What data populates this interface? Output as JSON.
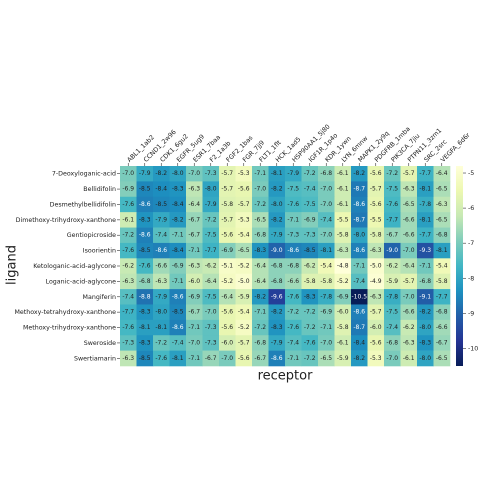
{
  "chart_data": {
    "type": "heatmap",
    "x_label": "receptor",
    "y_label": "ligand",
    "x_categories": [
      "ABL1_1ab2",
      "CCND1_2w96",
      "CDK1_6gu2",
      "EGFR_5ug9",
      "ESR1_7baa",
      "F2_1a3b",
      "FGF2_1bas",
      "FGR_7jj9",
      "FLT1_1flt",
      "HCK_1ad5",
      "HSP90AA1_5j80",
      "IGF1R_1p4o",
      "KDR_1ywn",
      "LYN_6mnw",
      "MAPK1_2y9q",
      "PDGFRB_1mba",
      "PIK3CA_7jiu",
      "PTPN11_3zm1",
      "SRC_2src",
      "VEGFA_6d6r"
    ],
    "y_categories": [
      "7-Deoxyloganic-acid",
      "Bellidifolin",
      "Desmethylbellidifolin",
      "Dimethoxy-trihydroxy-xanthone",
      "Gentiopicroside",
      "Isoorientin",
      "Ketologanic-acid-aglycone",
      "Loganic-acid-aglycone",
      "Mangiferin",
      "Methoxy-tetrahydroxy-xanthone",
      "Methoxy-trihydroxy-xanthone",
      "Sweroside",
      "Swertiamarin"
    ],
    "values": [
      [
        -7.0,
        -7.9,
        -8.2,
        -8.0,
        -7.0,
        -7.3,
        -5.7,
        -5.3,
        -7.1,
        -8.1,
        -7.9,
        -7.2,
        -6.8,
        -6.1,
        -8.2,
        -5.6,
        -7.2,
        -5.7,
        -7.7,
        -6.4
      ],
      [
        -6.9,
        -8.5,
        -8.4,
        -8.3,
        -6.3,
        -8.0,
        -5.7,
        -5.6,
        -7.0,
        -8.2,
        -7.5,
        -7.4,
        -7.0,
        -6.1,
        -8.7,
        -5.7,
        -7.5,
        -6.3,
        -8.1,
        -6.5
      ],
      [
        -7.6,
        -8.6,
        -8.5,
        -8.4,
        -6.4,
        -7.9,
        -5.8,
        -5.7,
        -7.2,
        -8.0,
        -7.6,
        -7.5,
        -7.0,
        -6.1,
        -8.6,
        -5.6,
        -7.6,
        -6.5,
        -7.8,
        -6.3
      ],
      [
        -6.1,
        -8.3,
        -7.9,
        -8.2,
        -6.7,
        -7.2,
        -5.7,
        -5.3,
        -6.5,
        -8.2,
        -7.1,
        -6.9,
        -7.4,
        -5.5,
        -8.7,
        -5.5,
        -7.7,
        -6.6,
        -8.1,
        -6.5
      ],
      [
        -7.2,
        -8.6,
        -7.4,
        -7.1,
        -6.7,
        -7.5,
        -5.6,
        -5.4,
        -6.8,
        -7.9,
        -7.3,
        -7.3,
        -7.0,
        -5.8,
        -8.0,
        -5.8,
        -6.7,
        -6.6,
        -7.7,
        -6.8
      ],
      [
        -7.6,
        -8.5,
        -8.6,
        -8.4,
        -7.1,
        -7.7,
        -6.9,
        -6.5,
        -8.3,
        -9.0,
        -8.6,
        -8.5,
        -8.1,
        -6.3,
        -8.6,
        -6.3,
        -9.0,
        -7.0,
        -9.3,
        -8.1
      ],
      [
        -6.2,
        -7.6,
        -6.6,
        -6.9,
        -6.3,
        -6.2,
        -5.1,
        -5.2,
        -6.4,
        -6.8,
        -6.8,
        -6.2,
        -5.4,
        -4.8,
        -7.1,
        -5.0,
        -6.2,
        -6.4,
        -7.1,
        -5.4
      ],
      [
        -6.3,
        -6.8,
        -6.3,
        -7.1,
        -6.0,
        -6.4,
        -5.2,
        -5.0,
        -6.4,
        -6.8,
        -6.6,
        -5.8,
        -5.8,
        -5.2,
        -7.4,
        -4.9,
        -5.9,
        -5.7,
        -6.8,
        -5.8
      ],
      [
        -7.4,
        -8.8,
        -7.9,
        -8.6,
        -6.9,
        -7.5,
        -6.4,
        -5.9,
        -8.2,
        -9.6,
        -7.6,
        -8.3,
        -7.8,
        -6.9,
        -10.5,
        -6.3,
        -7.8,
        -7.0,
        -9.1,
        -7.7
      ],
      [
        -7.7,
        -8.3,
        -8.0,
        -8.5,
        -6.7,
        -7.0,
        -5.6,
        -5.4,
        -7.1,
        -8.2,
        -7.2,
        -7.2,
        -6.9,
        -6.0,
        -8.6,
        -5.7,
        -7.5,
        -6.6,
        -8.2,
        -6.8
      ],
      [
        -7.6,
        -8.1,
        -8.1,
        -8.6,
        -7.1,
        -7.3,
        -5.6,
        -5.2,
        -7.2,
        -8.3,
        -7.6,
        -7.2,
        -7.1,
        -5.8,
        -8.7,
        -6.0,
        -7.4,
        -6.2,
        -8.0,
        -6.6
      ],
      [
        -7.3,
        -8.3,
        -7.2,
        -7.4,
        -7.0,
        -7.3,
        -6.0,
        -5.7,
        -6.8,
        -7.9,
        -7.4,
        -7.6,
        -7.0,
        -6.1,
        -8.4,
        -5.6,
        -6.8,
        -6.3,
        -8.3,
        -6.7
      ],
      [
        -6.3,
        -8.5,
        -7.6,
        -8.1,
        -7.1,
        -6.7,
        -7.0,
        -5.6,
        -6.7,
        -8.6,
        -7.1,
        -7.2,
        -6.5,
        -5.9,
        -8.2,
        -5.3,
        -7.0,
        -6.1,
        -8.0,
        -6.5
      ]
    ],
    "value_labels": [
      [
        "-7.0",
        "-7.9",
        "-8.2",
        "-8.0",
        "-7.0",
        "-7.3",
        "-5.7",
        "-5.3",
        "-7.1",
        "-8.1",
        "-7.9",
        "-7.2",
        "-6.8",
        "-6.1",
        "-8.2",
        "-5.6",
        "-7.2",
        "-5.7",
        "-7.7",
        "-6.4"
      ],
      [
        "-6.9",
        "-8.5",
        "-8.4",
        "-8.3",
        "-6.3",
        "-8.0",
        "-5.7",
        "-5.6",
        "-7.0",
        "-8.2",
        "-7.5",
        "-7.4",
        "-7.0",
        "-6.1",
        "-8.7",
        "-5.7",
        "-7.5",
        "-6.3",
        "-8.1",
        "-6.5"
      ],
      [
        "-7.6",
        "-8.6",
        "-8.5",
        "-8.4",
        "-6.4",
        "-7.9",
        "-5.8",
        "-5.7",
        "-7.2",
        "-8.0",
        "-7.6",
        "-7.5",
        "-7.0",
        "-6.1",
        "-8.6",
        "-5.6",
        "-7.6",
        "-6.5",
        "-7.8",
        "-6.3"
      ],
      [
        "-6.1",
        "-8.3",
        "-7.9",
        "-8.2",
        "-6.7",
        "-7.2",
        "-5.7",
        "-5.3",
        "-6.5",
        "-8.2",
        "-7.1",
        "-6.9",
        "-7.4",
        "-5.5",
        "-8.7",
        "-5.5",
        "-7.7",
        "-6.6",
        "-8.1",
        "-6.5"
      ],
      [
        "-7.2",
        "-8.6",
        "-7.4",
        "-7.1",
        "-6.7",
        "-7.5",
        "-5.6",
        "-5.4",
        "-6.8",
        "-7.9",
        "-7.3",
        "-7.3",
        "-7.0",
        "-5.8",
        "-8.0",
        "-5.8",
        "-6.7",
        "-6.6",
        "-7.7",
        "-6.8"
      ],
      [
        "-7.6",
        "-8.5",
        "-8.6",
        "-8.4",
        "-7.1",
        "-7.7",
        "-6.9",
        "-6.5",
        "-8.3",
        "-9.0",
        "-8.6",
        "-8.5",
        "-8.1",
        "-6.3",
        "-8.6",
        "-6.3",
        "-9.0",
        "-7.0",
        "-9.3",
        "-8.1"
      ],
      [
        "-6.2",
        "-7.6",
        "-6.6",
        "-6.9",
        "-6.3",
        "-6.2",
        "-5.1",
        "-5.2",
        "-6.4",
        "-6.8",
        "-6.8",
        "-6.2",
        "-5.4",
        "-4.8",
        "-7.1",
        "-5.0",
        "-6.2",
        "-6.4",
        "-7.1",
        "-5.4"
      ],
      [
        "-6.3",
        "-6.8",
        "-6.3",
        "-7.1",
        "-6.0",
        "-6.4",
        "-5.2",
        "-5.0",
        "-6.4",
        "-6.8",
        "-6.6",
        "-5.8",
        "-5.8",
        "-5.2",
        "-7.4",
        "-4.9",
        "-5.9",
        "-5.7",
        "-6.8",
        "-5.8"
      ],
      [
        "-7.4",
        "-8.8",
        "-7.9",
        "-8.6",
        "-6.9",
        "-7.5",
        "-6.4",
        "-5.9",
        "-8.2",
        "-9.6",
        "-7.6",
        "-8.3",
        "-7.8",
        "-6.9",
        "-10.5",
        "-6.3",
        "-7.8",
        "-7.0",
        "-9.1",
        "-7.7"
      ],
      [
        "-7.7",
        "-8.3",
        "-8.0",
        "-8.5",
        "-6.7",
        "-7.0",
        "-5.6",
        "-5.4",
        "-7.1",
        "-8.2",
        "-7.2",
        "-7.2",
        "-6.9",
        "-6.0",
        "-8.6",
        "-5.7",
        "-7.5",
        "-6.6",
        "-8.2",
        "-6.8"
      ],
      [
        "-7.6",
        "-8.1",
        "-8.1",
        "-8.6",
        "-7.1",
        "-7.3",
        "-5.6",
        "-5.2",
        "-7.2",
        "-8.3",
        "-7.6",
        "-7.2",
        "-7.1",
        "-5.8",
        "-8.7",
        "-6.0",
        "-7.4",
        "-6.2",
        "-8.0",
        "-6.6"
      ],
      [
        "-7.3",
        "-8.3",
        "-7.2",
        "-7.4",
        "-7.0",
        "-7.3",
        "-6.0",
        "-5.7",
        "-6.8",
        "-7.9",
        "-7.4",
        "-7.6",
        "-7.0",
        "-6.1",
        "-8.4",
        "-5.6",
        "-6.8",
        "-6.3",
        "-8.3",
        "-6.7"
      ],
      [
        "-6.3",
        "-8.5",
        "-7.6",
        "-8.1",
        "-7.1",
        "-6.7",
        "-7.0",
        "-5.6",
        "-6.7",
        "-8.6",
        "-7.1",
        "-7.2",
        "-6.5",
        "-5.9",
        "-8.2",
        "-5.3",
        "-7.0",
        "-6.1",
        "-8.0",
        "-6.5"
      ]
    ],
    "clim": [
      -10.5,
      -4.8
    ],
    "cticks": [
      -5,
      -6,
      -7,
      -8,
      -9,
      -10
    ],
    "colormap": [
      "#081d58",
      "#253494",
      "#225ea8",
      "#1d91c0",
      "#41b6c4",
      "#7fcdbb",
      "#c7e9b4",
      "#edf8b1",
      "#ffffd9"
    ]
  }
}
